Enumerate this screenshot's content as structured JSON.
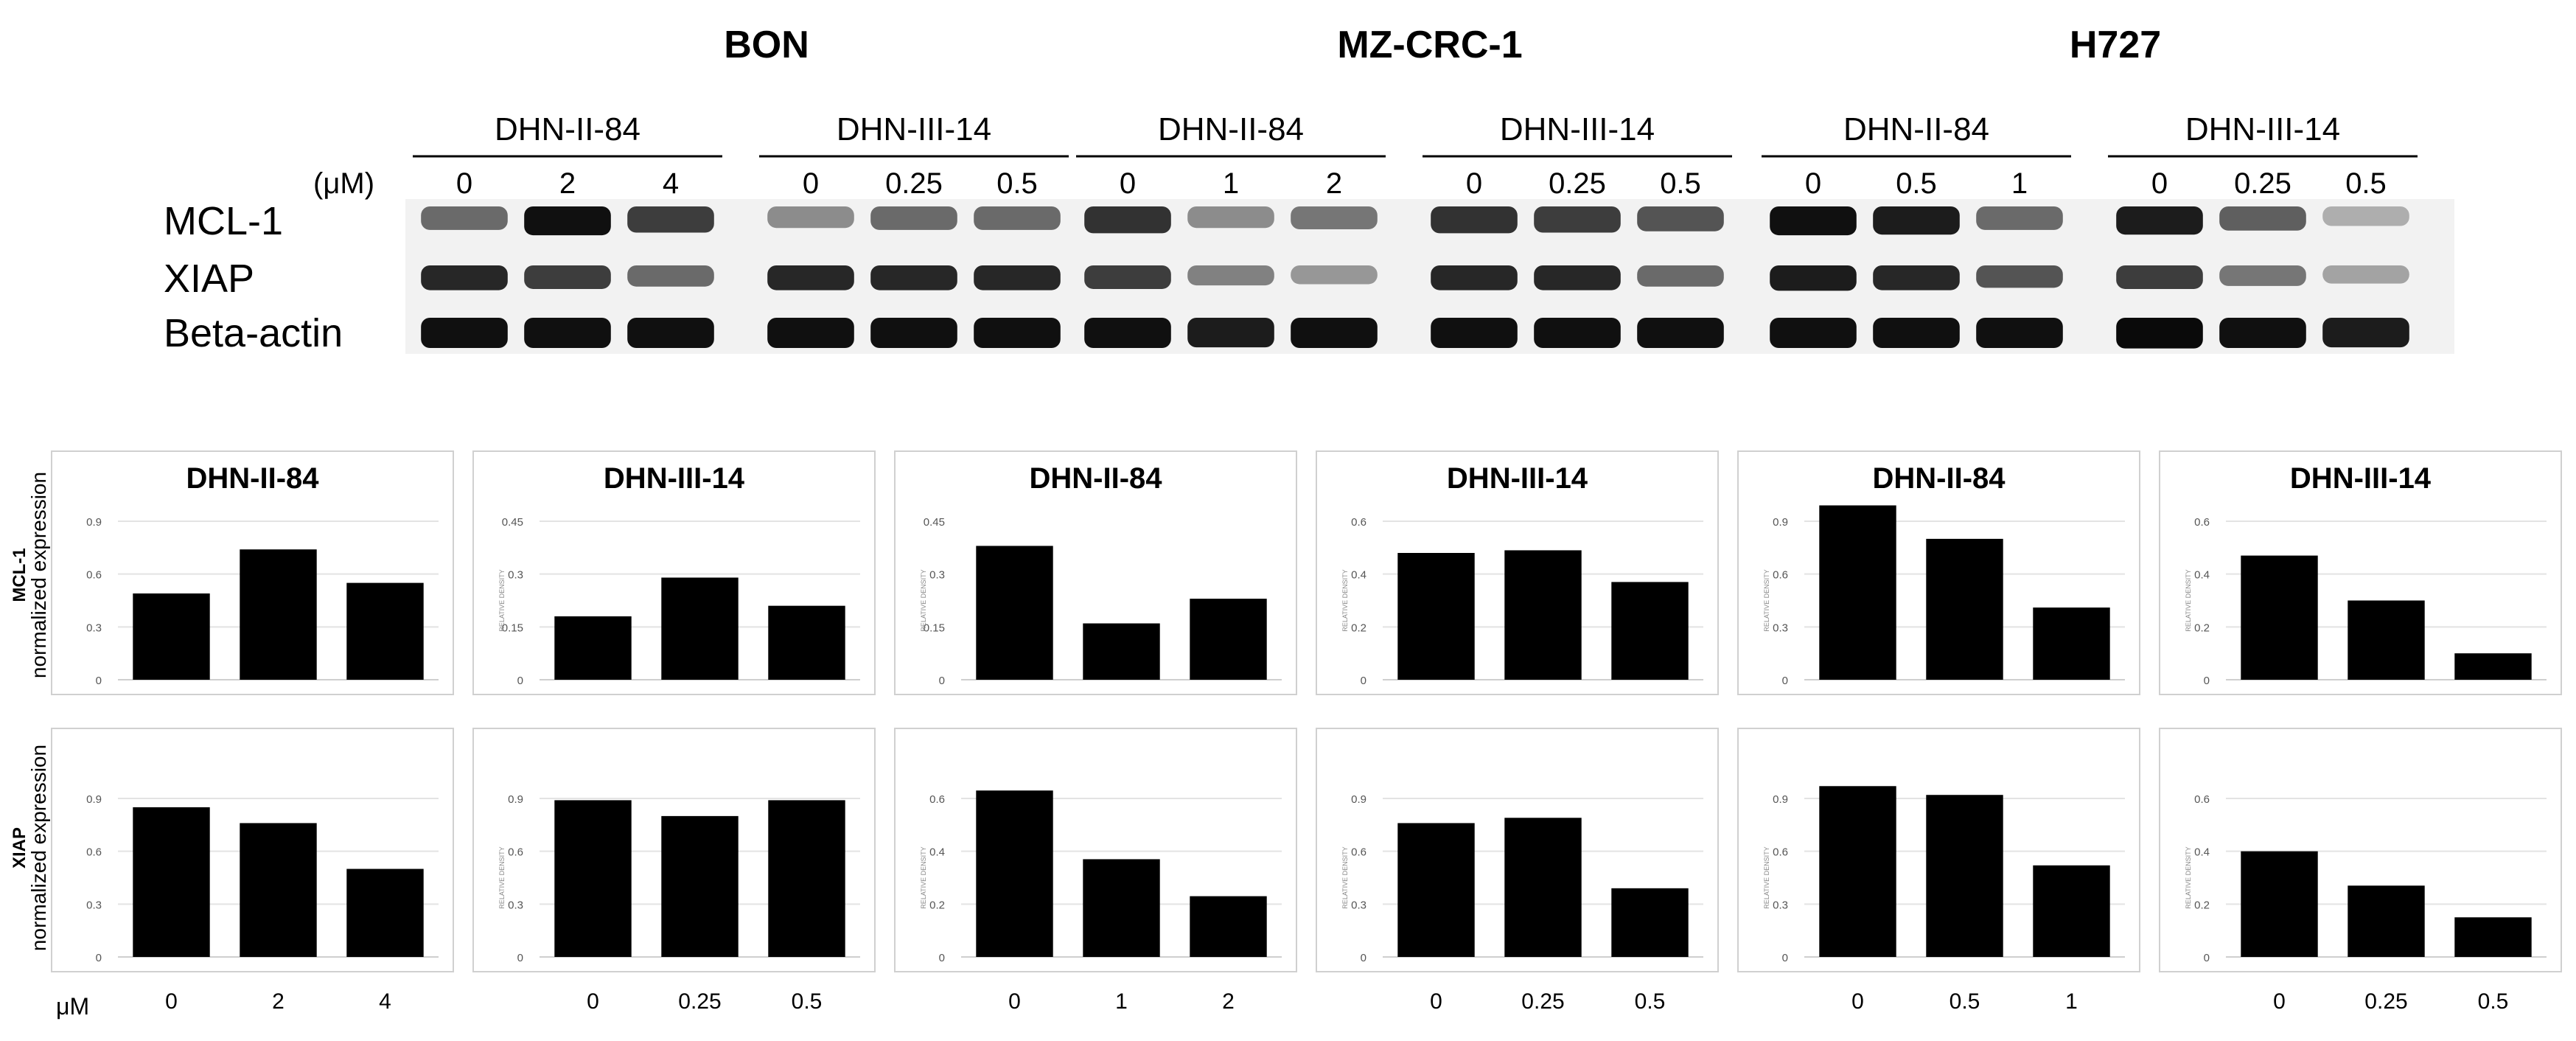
{
  "blot": {
    "concentration_unit": "(μM)",
    "row_labels": [
      "MCL-1",
      "XIAP",
      "Beta-actin"
    ],
    "cell_lines": [
      {
        "name": "BON",
        "treatments": [
          {
            "drug": "DHN-II-84",
            "doses": [
              "0",
              "2",
              "4"
            ],
            "band_intensity": {
              "MCL-1": [
                0.55,
                0.95,
                0.75
              ],
              "XIAP": [
                0.85,
                0.75,
                0.55
              ],
              "Beta-actin": [
                0.95,
                0.95,
                0.95
              ]
            }
          },
          {
            "drug": "DHN-III-14",
            "doses": [
              "0",
              "0.25",
              "0.5"
            ],
            "band_intensity": {
              "MCL-1": [
                0.4,
                0.55,
                0.55
              ],
              "XIAP": [
                0.85,
                0.85,
                0.85
              ],
              "Beta-actin": [
                0.95,
                0.95,
                0.95
              ]
            }
          }
        ]
      },
      {
        "name": "MZ-CRC-1",
        "treatments": [
          {
            "drug": "DHN-II-84",
            "doses": [
              "0",
              "1",
              "2"
            ],
            "band_intensity": {
              "MCL-1": [
                0.8,
                0.4,
                0.5
              ],
              "XIAP": [
                0.75,
                0.45,
                0.35
              ],
              "Beta-actin": [
                0.95,
                0.9,
                0.95
              ]
            }
          },
          {
            "drug": "DHN-III-14",
            "doses": [
              "0",
              "0.25",
              "0.5"
            ],
            "band_intensity": {
              "MCL-1": [
                0.8,
                0.75,
                0.65
              ],
              "XIAP": [
                0.85,
                0.85,
                0.55
              ],
              "Beta-actin": [
                0.95,
                0.95,
                0.95
              ]
            }
          }
        ]
      },
      {
        "name": "H727",
        "treatments": [
          {
            "drug": "DHN-II-84",
            "doses": [
              "0",
              "0.5",
              "1"
            ],
            "band_intensity": {
              "MCL-1": [
                0.95,
                0.9,
                0.55
              ],
              "XIAP": [
                0.9,
                0.85,
                0.65
              ],
              "Beta-actin": [
                0.95,
                0.95,
                0.95
              ]
            }
          },
          {
            "drug": "DHN-III-14",
            "doses": [
              "0",
              "0.25",
              "0.5"
            ],
            "band_intensity": {
              "MCL-1": [
                0.9,
                0.6,
                0.25
              ],
              "XIAP": [
                0.75,
                0.5,
                0.3
              ],
              "Beta-actin": [
                0.98,
                0.95,
                0.9
              ]
            }
          }
        ]
      }
    ]
  },
  "side_labels": {
    "mcl1_row": [
      "MCL-1",
      "normalized expression"
    ],
    "xiap_row": [
      "XIAP",
      "normalized expression"
    ],
    "x_unit": "μM"
  },
  "chart_data": [
    {
      "type": "bar",
      "cell_line": "BON",
      "protein": "MCL-1",
      "title": "DHN-II-84",
      "ylabel": "",
      "categories": [
        "0",
        "2",
        "4"
      ],
      "values": [
        0.49,
        0.74,
        0.55
      ],
      "ylim": [
        0,
        0.9
      ],
      "yticks": [
        "0",
        "0.3",
        "0.6",
        "0.9"
      ],
      "grid": true
    },
    {
      "type": "bar",
      "cell_line": "BON",
      "protein": "MCL-1",
      "title": "DHN-III-14",
      "ylabel": "RELATIVE DENSITY",
      "categories": [
        "0",
        "0.25",
        "0.5"
      ],
      "values": [
        0.18,
        0.29,
        0.21
      ],
      "ylim": [
        0,
        0.45
      ],
      "yticks": [
        "0",
        "0.15",
        "0.3",
        "0.45"
      ],
      "grid": true
    },
    {
      "type": "bar",
      "cell_line": "MZ-CRC-1",
      "protein": "MCL-1",
      "title": "DHN-II-84",
      "ylabel": "RELATIVE DENSITY",
      "categories": [
        "0",
        "1",
        "2"
      ],
      "values": [
        0.38,
        0.16,
        0.23
      ],
      "ylim": [
        0,
        0.45
      ],
      "yticks": [
        "0",
        "0.15",
        "0.3",
        "0.45"
      ],
      "grid": false
    },
    {
      "type": "bar",
      "cell_line": "MZ-CRC-1",
      "protein": "MCL-1",
      "title": "DHN-III-14",
      "ylabel": "RELATIVE DENSITY",
      "categories": [
        "0",
        "0.25",
        "0.5"
      ],
      "values": [
        0.48,
        0.49,
        0.37
      ],
      "ylim": [
        0,
        0.6
      ],
      "yticks": [
        "0",
        "0.2",
        "0.4",
        "0.6"
      ],
      "grid": true
    },
    {
      "type": "bar",
      "cell_line": "H727",
      "protein": "MCL-1",
      "title": "DHN-II-84",
      "ylabel": "RELATIVE DENSITY",
      "categories": [
        "0",
        "0.5",
        "1"
      ],
      "values": [
        0.99,
        0.8,
        0.41
      ],
      "ylim": [
        0,
        0.9
      ],
      "yticks": [
        "0",
        "0.3",
        "0.6",
        "0.9"
      ],
      "grid": true
    },
    {
      "type": "bar",
      "cell_line": "H727",
      "protein": "MCL-1",
      "title": "DHN-III-14",
      "ylabel": "RELATIVE DENSITY",
      "categories": [
        "0",
        "0.25",
        "0.5"
      ],
      "values": [
        0.47,
        0.3,
        0.1
      ],
      "ylim": [
        0,
        0.6
      ],
      "yticks": [
        "0",
        "0.2",
        "0.4",
        "0.6"
      ],
      "grid": true
    },
    {
      "type": "bar",
      "cell_line": "BON",
      "protein": "XIAP",
      "title": "",
      "ylabel": "",
      "categories": [
        "0",
        "2",
        "4"
      ],
      "values": [
        0.85,
        0.76,
        0.5
      ],
      "ylim": [
        0,
        0.9
      ],
      "yticks": [
        "0",
        "0.3",
        "0.6",
        "0.9"
      ],
      "grid": true
    },
    {
      "type": "bar",
      "cell_line": "BON",
      "protein": "XIAP",
      "title": "",
      "ylabel": "RELATIVE DENSITY",
      "categories": [
        "0",
        "0.25",
        "0.5"
      ],
      "values": [
        0.89,
        0.8,
        0.89
      ],
      "ylim": [
        0,
        0.9
      ],
      "yticks": [
        "0",
        "0.3",
        "0.6",
        "0.9"
      ],
      "grid": true
    },
    {
      "type": "bar",
      "cell_line": "MZ-CRC-1",
      "protein": "XIAP",
      "title": "",
      "ylabel": "RELATIVE DENSITY",
      "categories": [
        "0",
        "1",
        "2"
      ],
      "values": [
        0.63,
        0.37,
        0.23
      ],
      "ylim": [
        0,
        0.6
      ],
      "yticks": [
        "0",
        "0.2",
        "0.4",
        "0.6"
      ],
      "grid": true
    },
    {
      "type": "bar",
      "cell_line": "MZ-CRC-1",
      "protein": "XIAP",
      "title": "",
      "ylabel": "RELATIVE DENSITY",
      "categories": [
        "0",
        "0.25",
        "0.5"
      ],
      "values": [
        0.76,
        0.79,
        0.39
      ],
      "ylim": [
        0,
        0.9
      ],
      "yticks": [
        "0",
        "0.3",
        "0.6",
        "0.9"
      ],
      "grid": true
    },
    {
      "type": "bar",
      "cell_line": "H727",
      "protein": "XIAP",
      "title": "",
      "ylabel": "RELATIVE DENSITY",
      "categories": [
        "0",
        "0.5",
        "1"
      ],
      "values": [
        0.97,
        0.92,
        0.52
      ],
      "ylim": [
        0,
        0.9
      ],
      "yticks": [
        "0",
        "0.3",
        "0.6",
        "0.9"
      ],
      "grid": true
    },
    {
      "type": "bar",
      "cell_line": "H727",
      "protein": "XIAP",
      "title": "",
      "ylabel": "RELATIVE DENSITY",
      "categories": [
        "0",
        "0.25",
        "0.5"
      ],
      "values": [
        0.4,
        0.27,
        0.15
      ],
      "ylim": [
        0,
        0.6
      ],
      "yticks": [
        "0",
        "0.2",
        "0.4",
        "0.6"
      ],
      "grid": true
    }
  ]
}
